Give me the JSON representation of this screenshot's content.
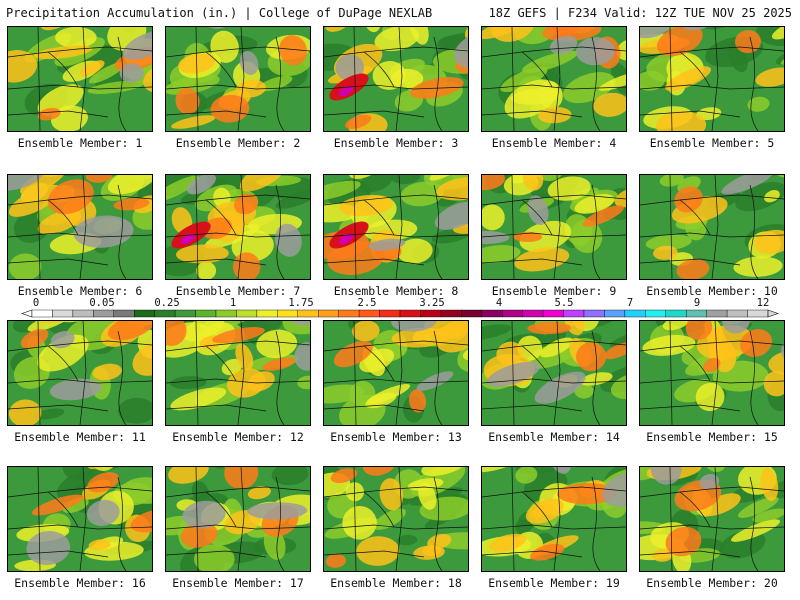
{
  "header": {
    "left": "Precipitation Accumulation (in.) | College of DuPage NEXLAB",
    "right": "18Z GEFS | F234 Valid: 12Z TUE NOV 25 2025"
  },
  "panels": [
    {
      "label": "Ensemble Member: 1"
    },
    {
      "label": "Ensemble Member: 2"
    },
    {
      "label": "Ensemble Member: 3"
    },
    {
      "label": "Ensemble Member: 4"
    },
    {
      "label": "Ensemble Member: 5"
    },
    {
      "label": "Ensemble Member: 6"
    },
    {
      "label": "Ensemble Member: 7"
    },
    {
      "label": "Ensemble Member: 8"
    },
    {
      "label": "Ensemble Member: 9"
    },
    {
      "label": "Ensemble Member: 10"
    },
    {
      "label": "Ensemble Member: 11"
    },
    {
      "label": "Ensemble Member: 12"
    },
    {
      "label": "Ensemble Member: 13"
    },
    {
      "label": "Ensemble Member: 14"
    },
    {
      "label": "Ensemble Member: 15"
    },
    {
      "label": "Ensemble Member: 16"
    },
    {
      "label": "Ensemble Member: 17"
    },
    {
      "label": "Ensemble Member: 18"
    },
    {
      "label": "Ensemble Member: 19"
    },
    {
      "label": "Ensemble Member: 20"
    }
  ],
  "colorbar": {
    "ticks": [
      "0",
      "0.05",
      "0.25",
      "1",
      "1.75",
      "2.5",
      "3.25",
      "4",
      "5.5",
      "7",
      "9",
      "12"
    ],
    "colors": [
      "#ffffff",
      "#d9d9d9",
      "#bdbdbd",
      "#9c9c9c",
      "#7a7a7a",
      "#1e6b1e",
      "#2a7f2a",
      "#3c9a3c",
      "#5fb42e",
      "#8ccc2a",
      "#bfe02a",
      "#ecf02a",
      "#ffe01a",
      "#ffc21a",
      "#ff9e1a",
      "#ff7a1a",
      "#ff5a1a",
      "#f2301a",
      "#d8101a",
      "#b8001a",
      "#960020",
      "#760030",
      "#8a0060",
      "#b0008a",
      "#d000b0",
      "#ee00d0",
      "#c040ff",
      "#9070ff",
      "#5aa0ff",
      "#20d0ff",
      "#20f0f0",
      "#20d8c8",
      "#60c0b0",
      "#a0a0a0",
      "#c0c0c0",
      "#d8d8d8"
    ]
  }
}
